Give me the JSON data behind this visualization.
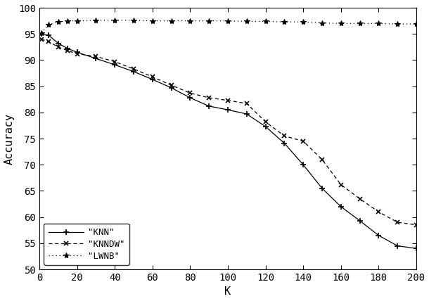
{
  "title": "",
  "xlabel": "K",
  "ylabel": "Accuracy",
  "xlim": [
    0,
    200
  ],
  "ylim": [
    50,
    100
  ],
  "xticks": [
    0,
    20,
    40,
    60,
    80,
    100,
    120,
    140,
    160,
    180,
    200
  ],
  "yticks": [
    50,
    55,
    60,
    65,
    70,
    75,
    80,
    85,
    90,
    95,
    100
  ],
  "KNN": {
    "k": [
      1,
      5,
      10,
      15,
      20,
      30,
      40,
      50,
      60,
      70,
      80,
      90,
      100,
      110,
      120,
      130,
      140,
      150,
      160,
      170,
      180,
      190,
      200
    ],
    "acc": [
      95.0,
      94.7,
      93.2,
      92.2,
      91.5,
      90.3,
      89.1,
      87.8,
      86.3,
      84.7,
      82.8,
      81.2,
      80.5,
      79.7,
      77.3,
      74.1,
      70.0,
      65.5,
      62.0,
      59.3,
      56.5,
      54.5,
      54.0
    ],
    "color": "black",
    "linestyle": "-",
    "marker": "+",
    "label": "\"KNN\""
  },
  "KNNDW": {
    "k": [
      1,
      5,
      10,
      15,
      20,
      30,
      40,
      50,
      60,
      70,
      80,
      90,
      100,
      110,
      120,
      130,
      140,
      150,
      160,
      170,
      180,
      190,
      200
    ],
    "acc": [
      94.0,
      93.5,
      92.5,
      91.8,
      91.2,
      90.7,
      89.7,
      88.3,
      86.8,
      85.2,
      83.7,
      82.8,
      82.3,
      81.7,
      78.2,
      75.5,
      74.5,
      71.0,
      66.2,
      63.5,
      61.0,
      59.0,
      58.5
    ],
    "color": "black",
    "linestyle": "--",
    "marker": "x",
    "label": "\"KNNDW\""
  },
  "LWNB": {
    "k": [
      1,
      5,
      10,
      15,
      20,
      30,
      40,
      50,
      60,
      70,
      80,
      90,
      100,
      110,
      120,
      130,
      140,
      150,
      160,
      170,
      180,
      190,
      200
    ],
    "acc": [
      95.2,
      96.8,
      97.3,
      97.5,
      97.5,
      97.6,
      97.6,
      97.6,
      97.5,
      97.5,
      97.5,
      97.5,
      97.5,
      97.4,
      97.4,
      97.3,
      97.3,
      97.1,
      97.0,
      97.0,
      97.0,
      96.9,
      96.9
    ],
    "color": "black",
    "linestyle": "--",
    "marker": "*",
    "label": "\"LWNB\""
  },
  "background_color": "white",
  "legend_loc": "lower left",
  "figsize": [
    6.1,
    4.28
  ],
  "dpi": 100
}
